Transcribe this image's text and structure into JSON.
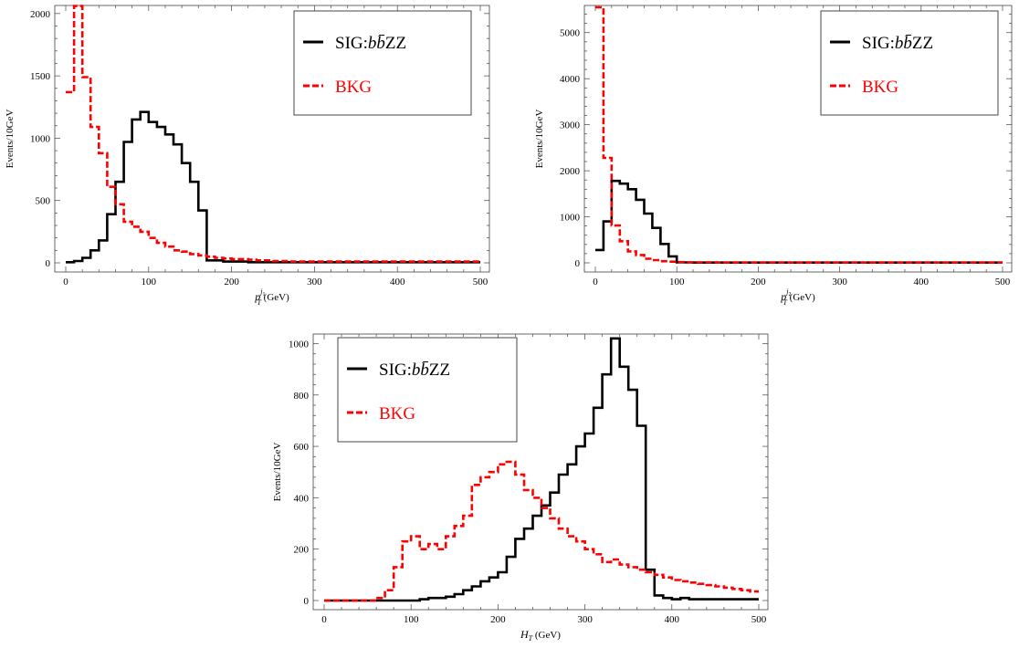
{
  "chart_data": [
    {
      "type": "line",
      "step": true,
      "ylabel": "Events/10GeV",
      "xlabel": {
        "main": "p",
        "sub": "T",
        "sup_main": "j",
        "sup_sub": "1",
        "unit": " (GeV)"
      },
      "xlim": [
        0,
        500
      ],
      "ylim": [
        0,
        2050
      ],
      "xticks": [
        0,
        100,
        200,
        300,
        400,
        500
      ],
      "yticks": [
        0,
        500,
        1000,
        1500,
        2000
      ],
      "legend_position": "top-right",
      "bin_edges": [
        0,
        10,
        20,
        30,
        40,
        50,
        60,
        70,
        80,
        90,
        100,
        110,
        120,
        130,
        140,
        150,
        160,
        170,
        180,
        190,
        200,
        210,
        220,
        230,
        240,
        250,
        260,
        270,
        280,
        290,
        300,
        310,
        320,
        330,
        340,
        350,
        360,
        370,
        380,
        390,
        400,
        410,
        420,
        430,
        440,
        450,
        460,
        470,
        480,
        490,
        500
      ],
      "series": [
        {
          "name": "SIG:bb̄ZZ",
          "color": "#000000",
          "style": "solid",
          "values": [
            5,
            15,
            40,
            100,
            180,
            390,
            650,
            970,
            1150,
            1210,
            1130,
            1090,
            1030,
            950,
            800,
            650,
            420,
            20,
            20,
            10,
            10,
            10,
            5,
            5,
            5,
            5,
            5,
            5,
            5,
            5,
            5,
            5,
            5,
            5,
            5,
            5,
            5,
            5,
            5,
            5,
            5,
            5,
            5,
            5,
            5,
            5,
            5,
            5,
            5,
            5
          ]
        },
        {
          "name": "BKG",
          "color": "#ff0000",
          "style": "dashed",
          "values": [
            1370,
            2060,
            1490,
            1090,
            880,
            610,
            470,
            330,
            290,
            250,
            200,
            160,
            130,
            100,
            90,
            70,
            60,
            50,
            40,
            35,
            30,
            30,
            25,
            20,
            20,
            15,
            15,
            10,
            10,
            10,
            10,
            10,
            10,
            10,
            10,
            10,
            10,
            10,
            10,
            10,
            10,
            10,
            10,
            10,
            10,
            10,
            10,
            10,
            10,
            10
          ]
        }
      ]
    },
    {
      "type": "line",
      "step": true,
      "ylabel": "Events/10GeV",
      "xlabel": {
        "main": "p",
        "sub": "T",
        "sup_main": "j",
        "sup_sub": "2",
        "unit": " (GeV)"
      },
      "xlim": [
        0,
        500
      ],
      "ylim": [
        0,
        5550
      ],
      "xticks": [
        0,
        100,
        200,
        300,
        400,
        500
      ],
      "yticks": [
        0,
        1000,
        2000,
        3000,
        4000,
        5000
      ],
      "legend_position": "top-right",
      "bin_edges": [
        0,
        10,
        20,
        30,
        40,
        50,
        60,
        70,
        80,
        90,
        100,
        110,
        120,
        130,
        140,
        150,
        160,
        170,
        180,
        190,
        200,
        210,
        220,
        230,
        240,
        250,
        260,
        270,
        280,
        290,
        300,
        310,
        320,
        330,
        340,
        350,
        360,
        370,
        380,
        390,
        400,
        410,
        420,
        430,
        440,
        450,
        460,
        470,
        480,
        490,
        500
      ],
      "series": [
        {
          "name": "SIG:bb̄ZZ",
          "color": "#000000",
          "style": "solid",
          "values": [
            280,
            900,
            1780,
            1720,
            1600,
            1370,
            1070,
            760,
            410,
            140,
            10,
            10,
            5,
            5,
            5,
            5,
            5,
            5,
            5,
            5,
            5,
            5,
            5,
            5,
            5,
            5,
            5,
            5,
            5,
            5,
            5,
            5,
            5,
            5,
            5,
            5,
            5,
            5,
            5,
            5,
            5,
            5,
            5,
            5,
            5,
            5,
            5,
            5,
            5,
            5
          ]
        },
        {
          "name": "BKG",
          "color": "#ff0000",
          "style": "dashed",
          "values": [
            5550,
            2280,
            810,
            470,
            250,
            170,
            90,
            60,
            35,
            25,
            15,
            10,
            10,
            10,
            10,
            5,
            5,
            5,
            5,
            5,
            5,
            5,
            5,
            5,
            5,
            5,
            5,
            5,
            5,
            5,
            5,
            5,
            5,
            5,
            5,
            5,
            5,
            5,
            5,
            5,
            5,
            5,
            5,
            5,
            5,
            5,
            5,
            5,
            5,
            5
          ]
        }
      ]
    },
    {
      "type": "line",
      "step": true,
      "ylabel": "Events/10GeV",
      "xlabel": {
        "main": "H",
        "sub": "T",
        "sup_main": "",
        "sup_sub": "",
        "unit": " (GeV)"
      },
      "xlim": [
        0,
        500
      ],
      "ylim": [
        0,
        1030
      ],
      "xticks": [
        0,
        100,
        200,
        300,
        400,
        500
      ],
      "yticks": [
        0,
        200,
        400,
        600,
        800,
        1000
      ],
      "legend_position": "top-left",
      "bin_edges": [
        0,
        10,
        20,
        30,
        40,
        50,
        60,
        70,
        80,
        90,
        100,
        110,
        120,
        130,
        140,
        150,
        160,
        170,
        180,
        190,
        200,
        210,
        220,
        230,
        240,
        250,
        260,
        270,
        280,
        290,
        300,
        310,
        320,
        330,
        340,
        350,
        360,
        370,
        380,
        390,
        400,
        410,
        420,
        430,
        440,
        450,
        460,
        470,
        480,
        490,
        500
      ],
      "series": [
        {
          "name": "SIG:bb̄ZZ",
          "color": "#000000",
          "style": "solid",
          "values": [
            0,
            0,
            0,
            0,
            0,
            0,
            0,
            0,
            0,
            0,
            0,
            5,
            10,
            10,
            15,
            25,
            40,
            55,
            75,
            90,
            110,
            170,
            240,
            280,
            330,
            370,
            420,
            490,
            530,
            600,
            650,
            750,
            880,
            1020,
            910,
            820,
            680,
            120,
            20,
            10,
            5,
            10,
            5,
            5,
            5,
            5,
            5,
            5,
            5,
            5
          ]
        },
        {
          "name": "BKG",
          "color": "#ff0000",
          "style": "dashed",
          "values": [
            0,
            0,
            0,
            0,
            0,
            0,
            10,
            40,
            130,
            230,
            250,
            200,
            220,
            200,
            250,
            290,
            330,
            450,
            480,
            500,
            530,
            540,
            490,
            430,
            400,
            360,
            320,
            280,
            250,
            230,
            200,
            180,
            150,
            160,
            140,
            130,
            120,
            110,
            100,
            90,
            80,
            75,
            70,
            65,
            60,
            55,
            50,
            45,
            40,
            35
          ]
        }
      ]
    }
  ]
}
